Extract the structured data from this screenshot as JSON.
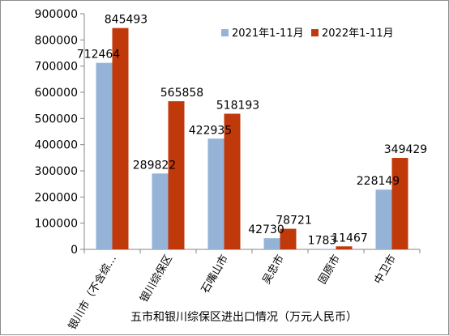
{
  "chart_data": {
    "type": "bar",
    "title": "",
    "xlabel": "五市和银川综保区进出口情况（万元人民币）",
    "ylabel": "",
    "ylim": [
      0,
      900000
    ],
    "yticks": [
      0,
      100000,
      200000,
      300000,
      400000,
      500000,
      600000,
      700000,
      800000,
      900000
    ],
    "categories": [
      "银川市（不含综…",
      "银川综保区",
      "石嘴山市",
      "吴忠市",
      "固原市",
      "中卫市"
    ],
    "series": [
      {
        "name": "2021年1-11月",
        "color": "#95b3d7",
        "values": [
          712464,
          289822,
          422935,
          42730,
          1783,
          228149
        ]
      },
      {
        "name": "2022年1-11月",
        "color": "#c0390b",
        "values": [
          845493,
          565858,
          518193,
          78721,
          11467,
          349429
        ]
      }
    ],
    "legend_position": "top-right",
    "grid": false
  }
}
